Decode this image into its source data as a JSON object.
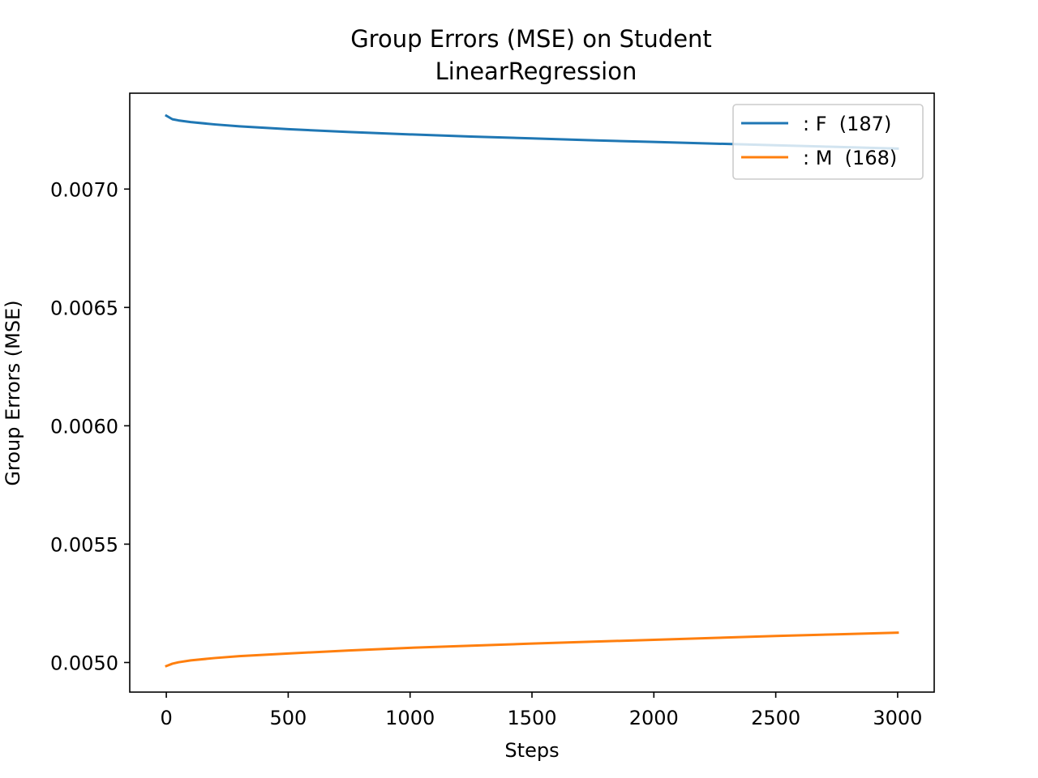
{
  "chart_data": {
    "type": "line",
    "title": [
      "Group Errors (MSE) on Student",
      "LinearRegression"
    ],
    "xlabel": "Steps",
    "ylabel": "Group Errors (MSE)",
    "xlim": [
      -150,
      3150
    ],
    "ylim": [
      0.004875,
      0.007405
    ],
    "xticks": [
      0,
      500,
      1000,
      1500,
      2000,
      2500,
      3000
    ],
    "xtick_labels": [
      "0",
      "500",
      "1000",
      "1500",
      "2000",
      "2500",
      "3000"
    ],
    "yticks": [
      0.005,
      0.0055,
      0.006,
      0.0065,
      0.007
    ],
    "ytick_labels": [
      "0.0050",
      "0.0055",
      "0.0060",
      "0.0065",
      "0.0070"
    ],
    "grid": false,
    "legend_position": "top-right",
    "series": [
      {
        "name": ": F  (187)",
        "color": "#1f77b4",
        "x": [
          0,
          25,
          50,
          100,
          200,
          300,
          500,
          750,
          1000,
          1250,
          1500,
          1750,
          2000,
          2250,
          2500,
          2750,
          3000
        ],
        "y": [
          0.00731,
          0.007295,
          0.00729,
          0.007283,
          0.007273,
          0.007265,
          0.007253,
          0.007241,
          0.007231,
          0.007222,
          0.007214,
          0.007206,
          0.007199,
          0.007192,
          0.007185,
          0.007178,
          0.007171
        ]
      },
      {
        "name": ": M  (168)",
        "color": "#ff7f0e",
        "x": [
          0,
          25,
          50,
          100,
          200,
          300,
          500,
          750,
          1000,
          1250,
          1500,
          1750,
          2000,
          2250,
          2500,
          2750,
          3000
        ],
        "y": [
          0.004985,
          0.004995,
          0.005001,
          0.005009,
          0.005019,
          0.005027,
          0.005038,
          0.005051,
          0.005062,
          0.005071,
          0.00508,
          0.005088,
          0.005096,
          0.005104,
          0.005112,
          0.005119,
          0.005126
        ]
      }
    ]
  }
}
